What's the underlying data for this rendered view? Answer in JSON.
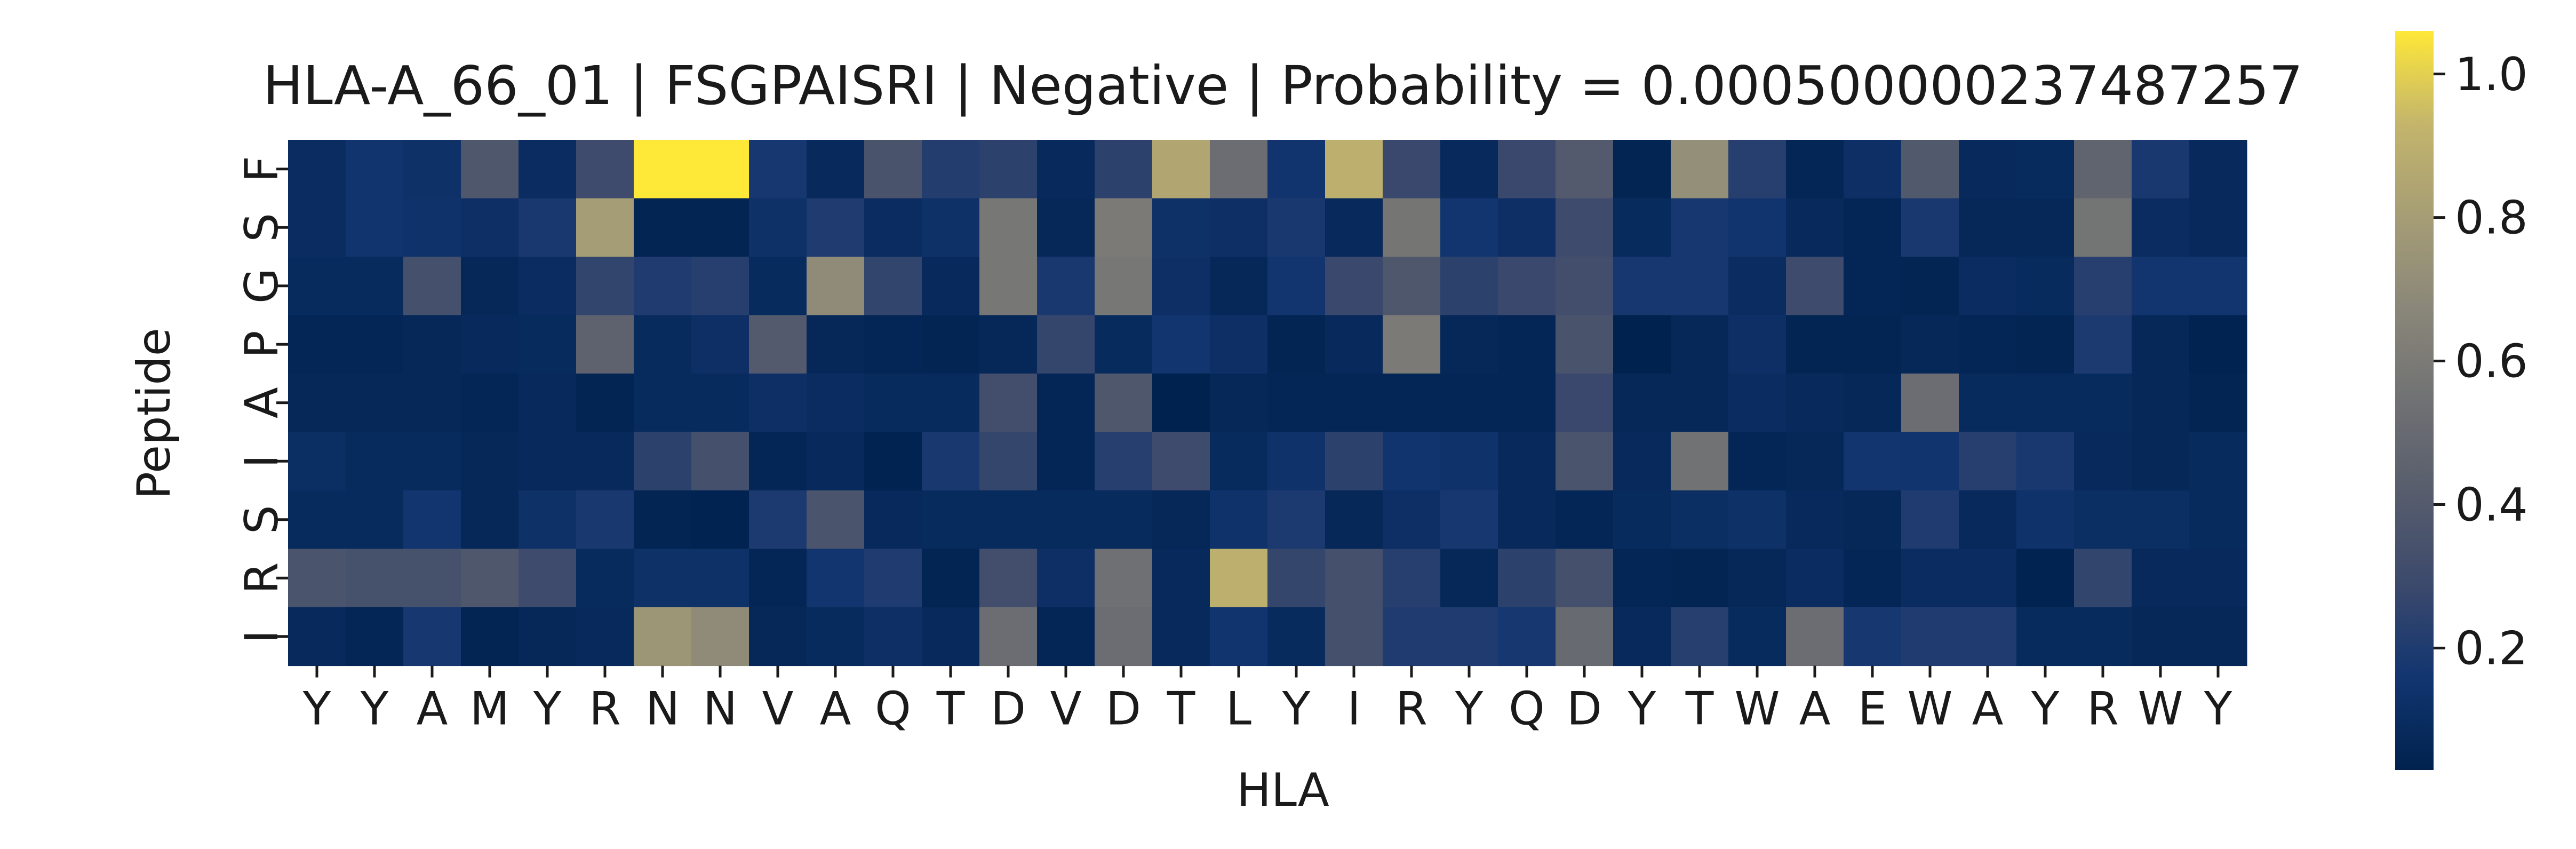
{
  "chart_data": {
    "type": "heatmap",
    "title": "HLA-A_66_01 | FSGPAISRI | Negative | Probability = 0.000500000237487257",
    "xlabel": "HLA",
    "ylabel": "Peptide",
    "x_ticks": [
      "Y",
      "Y",
      "A",
      "M",
      "Y",
      "R",
      "N",
      "N",
      "V",
      "A",
      "Q",
      "T",
      "D",
      "V",
      "D",
      "T",
      "L",
      "Y",
      "I",
      "R",
      "Y",
      "Q",
      "D",
      "Y",
      "T",
      "W",
      "A",
      "E",
      "W",
      "A",
      "Y",
      "R",
      "W",
      "Y"
    ],
    "y_ticks": [
      "F",
      "S",
      "G",
      "P",
      "A",
      "I",
      "S",
      "R",
      "I"
    ],
    "colormap": "cividis",
    "colorbar": {
      "vmin": 0.03,
      "vmax": 1.06,
      "ticks": [
        0.2,
        0.4,
        0.6,
        0.8,
        1.0
      ],
      "tick_labels": [
        "0.2",
        "0.4",
        "0.6",
        "0.8",
        "1.0"
      ]
    },
    "values": [
      [
        0.1,
        0.15,
        0.13,
        0.38,
        0.1,
        0.3,
        1.06,
        1.06,
        0.17,
        0.08,
        0.35,
        0.21,
        0.24,
        0.08,
        0.24,
        0.85,
        0.52,
        0.15,
        0.9,
        0.28,
        0.08,
        0.28,
        0.4,
        0.05,
        0.72,
        0.22,
        0.06,
        0.12,
        0.39,
        0.08,
        0.09,
        0.46,
        0.18,
        0.08
      ],
      [
        0.1,
        0.15,
        0.14,
        0.12,
        0.18,
        0.8,
        0.05,
        0.05,
        0.13,
        0.2,
        0.1,
        0.13,
        0.58,
        0.07,
        0.6,
        0.13,
        0.12,
        0.18,
        0.08,
        0.57,
        0.16,
        0.12,
        0.3,
        0.09,
        0.17,
        0.15,
        0.08,
        0.06,
        0.18,
        0.07,
        0.07,
        0.56,
        0.1,
        0.08
      ],
      [
        0.09,
        0.09,
        0.33,
        0.07,
        0.1,
        0.26,
        0.2,
        0.22,
        0.09,
        0.7,
        0.26,
        0.08,
        0.58,
        0.18,
        0.58,
        0.12,
        0.07,
        0.16,
        0.28,
        0.38,
        0.24,
        0.28,
        0.32,
        0.17,
        0.17,
        0.1,
        0.3,
        0.06,
        0.05,
        0.1,
        0.09,
        0.22,
        0.16,
        0.16
      ],
      [
        0.06,
        0.06,
        0.07,
        0.08,
        0.09,
        0.45,
        0.09,
        0.12,
        0.4,
        0.07,
        0.06,
        0.05,
        0.07,
        0.27,
        0.09,
        0.16,
        0.12,
        0.05,
        0.08,
        0.6,
        0.07,
        0.06,
        0.35,
        0.03,
        0.07,
        0.12,
        0.05,
        0.05,
        0.07,
        0.06,
        0.05,
        0.19,
        0.07,
        0.04
      ],
      [
        0.07,
        0.07,
        0.07,
        0.06,
        0.08,
        0.05,
        0.09,
        0.09,
        0.12,
        0.1,
        0.09,
        0.09,
        0.32,
        0.06,
        0.38,
        0.03,
        0.07,
        0.06,
        0.06,
        0.06,
        0.06,
        0.06,
        0.28,
        0.07,
        0.07,
        0.1,
        0.08,
        0.07,
        0.52,
        0.09,
        0.09,
        0.09,
        0.07,
        0.05
      ],
      [
        0.11,
        0.09,
        0.09,
        0.07,
        0.08,
        0.08,
        0.24,
        0.33,
        0.06,
        0.08,
        0.04,
        0.18,
        0.27,
        0.06,
        0.22,
        0.3,
        0.09,
        0.14,
        0.24,
        0.15,
        0.14,
        0.08,
        0.36,
        0.08,
        0.55,
        0.06,
        0.07,
        0.16,
        0.15,
        0.22,
        0.18,
        0.08,
        0.07,
        0.09
      ],
      [
        0.09,
        0.09,
        0.16,
        0.07,
        0.13,
        0.18,
        0.05,
        0.04,
        0.19,
        0.36,
        0.08,
        0.09,
        0.09,
        0.09,
        0.09,
        0.07,
        0.14,
        0.19,
        0.07,
        0.12,
        0.17,
        0.08,
        0.06,
        0.09,
        0.11,
        0.13,
        0.08,
        0.07,
        0.2,
        0.08,
        0.14,
        0.11,
        0.11,
        0.09
      ],
      [
        0.36,
        0.34,
        0.34,
        0.38,
        0.3,
        0.09,
        0.13,
        0.13,
        0.06,
        0.16,
        0.2,
        0.05,
        0.32,
        0.12,
        0.54,
        0.08,
        0.9,
        0.27,
        0.33,
        0.22,
        0.07,
        0.24,
        0.33,
        0.06,
        0.05,
        0.07,
        0.1,
        0.06,
        0.1,
        0.1,
        0.04,
        0.26,
        0.08,
        0.08
      ],
      [
        0.08,
        0.06,
        0.17,
        0.05,
        0.07,
        0.08,
        0.76,
        0.7,
        0.07,
        0.09,
        0.12,
        0.08,
        0.52,
        0.06,
        0.52,
        0.08,
        0.15,
        0.09,
        0.33,
        0.2,
        0.2,
        0.17,
        0.5,
        0.08,
        0.22,
        0.09,
        0.52,
        0.17,
        0.2,
        0.2,
        0.09,
        0.09,
        0.07,
        0.07
      ]
    ]
  }
}
